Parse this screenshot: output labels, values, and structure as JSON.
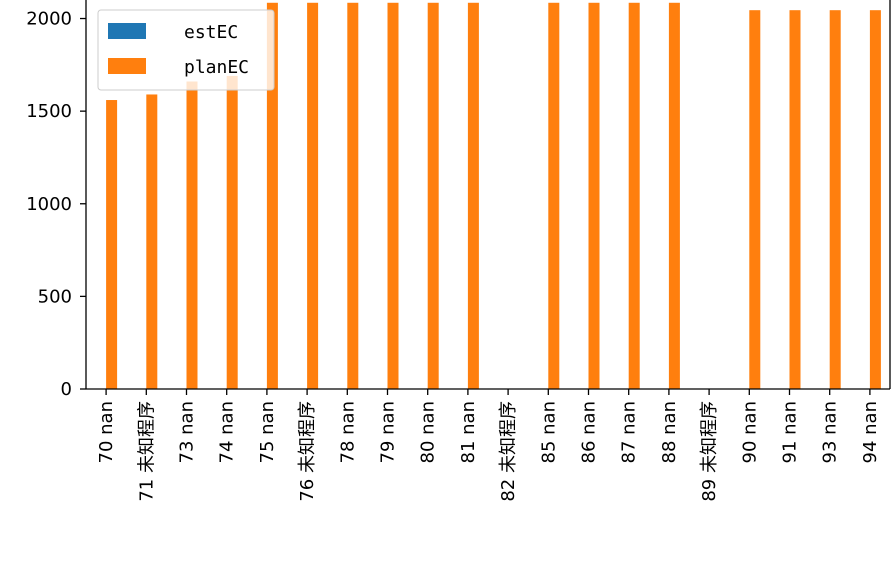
{
  "chart_data": {
    "type": "bar",
    "title": "",
    "xlabel": "",
    "ylabel": "",
    "ylim": [
      0,
      2100
    ],
    "yticks": [
      0,
      500,
      1000,
      1500,
      2000
    ],
    "grid": false,
    "legend": {
      "placement": "top-left"
    },
    "categories": [
      "70 nan",
      "71 未知程序",
      "73 nan",
      "74 nan",
      "75 nan",
      "76 未知程序",
      "78 nan",
      "79 nan",
      "80 nan",
      "81 nan",
      "82 未知程序",
      "85 nan",
      "86 nan",
      "87 nan",
      "88 nan",
      "89 未知程序",
      "90 nan",
      "91 nan",
      "93 nan",
      "94 nan"
    ],
    "series": [
      {
        "name": "estEC",
        "color": "#1f77b4",
        "values": [
          0,
          0,
          0,
          0,
          0,
          0,
          0,
          0,
          0,
          0,
          0,
          0,
          0,
          0,
          0,
          0,
          0,
          0,
          0,
          0
        ]
      },
      {
        "name": "planEC",
        "color": "#ff7f0e",
        "values": [
          1560,
          1590,
          1660,
          1690,
          2085,
          2085,
          2085,
          2085,
          2085,
          2085,
          0,
          2085,
          2085,
          2085,
          2085,
          0,
          2045,
          2045,
          2045,
          2045
        ]
      }
    ]
  }
}
